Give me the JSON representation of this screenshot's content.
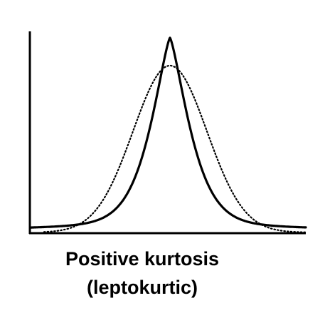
{
  "caption": {
    "line1": "Positive kurtosis",
    "line2": "(leptokurtic)"
  },
  "colors": {
    "ink": "#000000",
    "background": "#ffffff"
  },
  "curves": {
    "leptokurtic_style": "solid",
    "normal_reference_style": "dotted"
  }
}
